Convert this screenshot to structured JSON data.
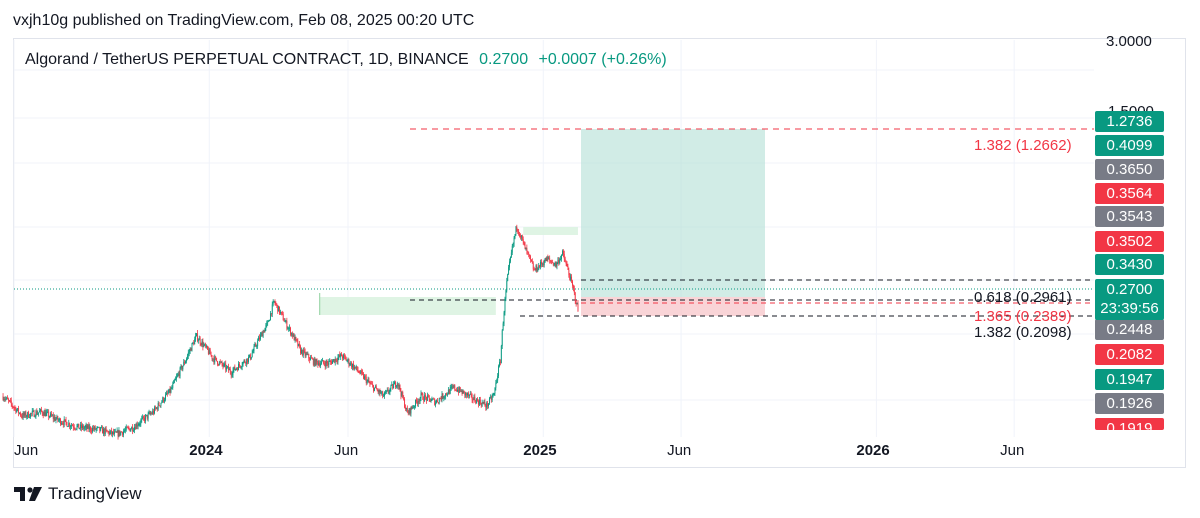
{
  "publisher_line": "vxjh10g published on TradingView.com, Feb 08, 2025 00:20 UTC",
  "symbol": {
    "name": "Algorand / TetherUS PERPETUAL CONTRACT, 1D, BINANCE",
    "price": "0.2700",
    "change": "+0.0007 (+0.26%)"
  },
  "branding": {
    "logo_text": "TradingView"
  },
  "chart_data": {
    "type": "candlestick",
    "x_axis_labels": [
      "Jun",
      "2024",
      "Jun",
      "2025",
      "Jun",
      "2026",
      "Jun"
    ],
    "y_axis_top_labels": [
      "3.0000",
      "1.5000"
    ],
    "last_price": {
      "value": "0.2700",
      "countdown": "23:39:56"
    },
    "price_tags": [
      {
        "value": "1.2736",
        "color": "#089981"
      },
      {
        "value": "0.4099",
        "color": "#089981"
      },
      {
        "value": "0.3650",
        "color": "#787b86"
      },
      {
        "value": "0.3564",
        "color": "#f23645"
      },
      {
        "value": "0.3543",
        "color": "#787b86"
      },
      {
        "value": "0.3502",
        "color": "#f23645"
      },
      {
        "value": "0.3430",
        "color": "#089981"
      },
      {
        "value": "0.2448",
        "color": "#787b86"
      },
      {
        "value": "0.2082",
        "color": "#f23645"
      },
      {
        "value": "0.1947",
        "color": "#089981"
      },
      {
        "value": "0.1926",
        "color": "#787b86"
      },
      {
        "value": "0.1919",
        "color": "#f23645"
      }
    ],
    "fib_labels": [
      {
        "text": "1.382 (1.2662)",
        "color": "#f23645"
      },
      {
        "text": "0.618 (0.2961)",
        "color": "#131722"
      },
      {
        "text": "1.365 (0.2389)",
        "color": "#f23645"
      },
      {
        "text": "1.382 (0.2098)",
        "color": "#131722"
      }
    ],
    "position_tool": {
      "target": "1.2736",
      "stop": "0.2448"
    },
    "price_path": [
      [
        "2023-05-20",
        0.128
      ],
      [
        "2023-06-10",
        0.108
      ],
      [
        "2023-07-01",
        0.112
      ],
      [
        "2023-07-20",
        0.104
      ],
      [
        "2023-08-10",
        0.098
      ],
      [
        "2023-09-01",
        0.096
      ],
      [
        "2023-09-20",
        0.092
      ],
      [
        "2023-10-10",
        0.098
      ],
      [
        "2023-11-01",
        0.112
      ],
      [
        "2023-11-20",
        0.135
      ],
      [
        "2023-12-05",
        0.172
      ],
      [
        "2023-12-18",
        0.215
      ],
      [
        "2024-01-05",
        0.178
      ],
      [
        "2024-01-25",
        0.158
      ],
      [
        "2024-02-15",
        0.18
      ],
      [
        "2024-03-05",
        0.24
      ],
      [
        "2024-03-12",
        0.29
      ],
      [
        "2024-03-25",
        0.24
      ],
      [
        "2024-04-10",
        0.19
      ],
      [
        "2024-04-25",
        0.172
      ],
      [
        "2024-05-10",
        0.17
      ],
      [
        "2024-05-25",
        0.182
      ],
      [
        "2024-06-10",
        0.162
      ],
      [
        "2024-06-25",
        0.142
      ],
      [
        "2024-07-10",
        0.128
      ],
      [
        "2024-07-25",
        0.145
      ],
      [
        "2024-08-05",
        0.11
      ],
      [
        "2024-08-20",
        0.128
      ],
      [
        "2024-09-05",
        0.122
      ],
      [
        "2024-09-25",
        0.138
      ],
      [
        "2024-10-15",
        0.126
      ],
      [
        "2024-10-31",
        0.118
      ],
      [
        "2024-11-08",
        0.13
      ],
      [
        "2024-11-15",
        0.175
      ],
      [
        "2024-11-22",
        0.34
      ],
      [
        "2024-12-03",
        0.56
      ],
      [
        "2024-12-12",
        0.46
      ],
      [
        "2024-12-22",
        0.38
      ],
      [
        "2025-01-05",
        0.42
      ],
      [
        "2025-01-15",
        0.4
      ],
      [
        "2025-01-22",
        0.44
      ],
      [
        "2025-01-30",
        0.36
      ],
      [
        "2025-02-05",
        0.3
      ],
      [
        "2025-02-08",
        0.27
      ]
    ]
  }
}
